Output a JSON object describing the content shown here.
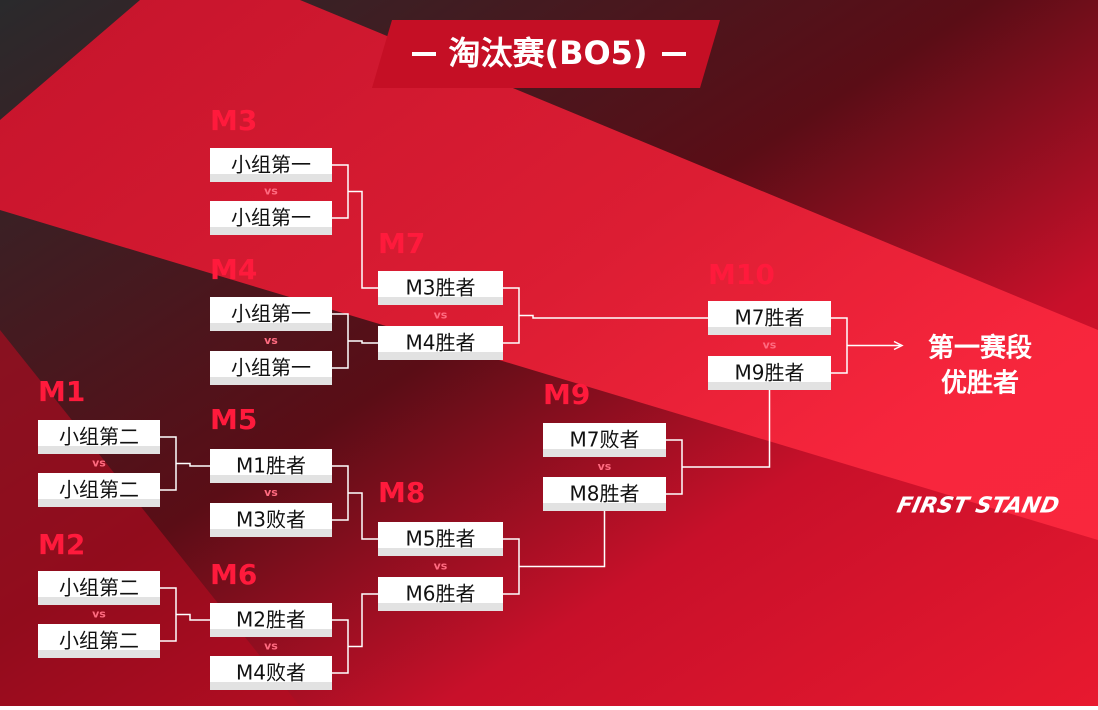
{
  "title": "淘汰赛(BO5)",
  "matches": [
    {
      "label": "M1",
      "teams": [
        "小组第二",
        "小组第二"
      ],
      "vs": "vs"
    },
    {
      "label": "M2",
      "teams": [
        "小组第二",
        "小组第二"
      ],
      "vs": "vs"
    },
    {
      "label": "M3",
      "teams": [
        "小组第一",
        "小组第一"
      ],
      "vs": "vs"
    },
    {
      "label": "M4",
      "teams": [
        "小组第一",
        "小组第一"
      ],
      "vs": "vs"
    },
    {
      "label": "M5",
      "teams": [
        "M1胜者",
        "M3败者"
      ],
      "vs": "vs"
    },
    {
      "label": "M6",
      "teams": [
        "M2胜者",
        "M4败者"
      ],
      "vs": "vs"
    },
    {
      "label": "M7",
      "teams": [
        "M3胜者",
        "M4胜者"
      ],
      "vs": "vs"
    },
    {
      "label": "M8",
      "teams": [
        "M5胜者",
        "M6胜者"
      ],
      "vs": "vs"
    },
    {
      "label": "M9",
      "teams": [
        "M7败者",
        "M8胜者"
      ],
      "vs": "vs"
    },
    {
      "label": "M10",
      "teams": [
        "M7胜者",
        "M9胜者"
      ],
      "vs": "vs"
    }
  ],
  "winner": [
    "第一赛段",
    "优胜者"
  ],
  "logo": "FIRST STAND"
}
